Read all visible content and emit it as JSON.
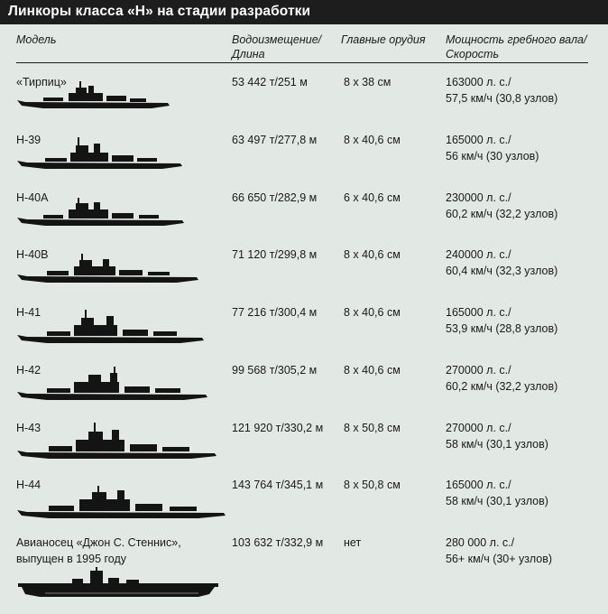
{
  "title": "Линкоры класса «Н» на стадии разработки",
  "headers": {
    "model": "Модель",
    "displacement_line1": "Водоизмещение/",
    "displacement_line2": "Длина",
    "guns": "Главные орудия",
    "power_line1": "Мощность гребного вала/",
    "power_line2": "Скорость"
  },
  "rows": [
    {
      "model": "«Тирпиц»",
      "displacement": "53 442 т/251 м",
      "guns": "8 х 38 см",
      "power": "163000 л. с./",
      "speed": "57,5 км/ч (30,8 узлов)"
    },
    {
      "model": "Н-39",
      "displacement": "63 497 т/277,8 м",
      "guns": "8 х 40,6 см",
      "power": "165000 л. с./",
      "speed": "56 км/ч (30 узлов)"
    },
    {
      "model": "Н-40А",
      "displacement": "66 650 т/282,9 м",
      "guns": "6 х 40,6 см",
      "power": "230000 л. с./",
      "speed": "60,2 км/ч (32,2 узлов)"
    },
    {
      "model": "Н-40В",
      "displacement": "71 120 т/299,8 м",
      "guns": "8 х 40,6 см",
      "power": "240000 л. с./",
      "speed": "60,4 км/ч (32,3 узлов)"
    },
    {
      "model": "Н-41",
      "displacement": "77 216 т/300,4 м",
      "guns": "8 х 40,6 см",
      "power": "165000 л. с./",
      "speed": "53,9 км/ч (28,8 узлов)"
    },
    {
      "model": "Н-42",
      "displacement": "99 568 т/305,2 м",
      "guns": "8 х 40,6 см",
      "power": "270000 л. с./",
      "speed": "60,2 км/ч (32,2 узлов)"
    },
    {
      "model": "Н-43",
      "displacement": "121 920 т/330,2 м",
      "guns": "8 х 50,8 см",
      "power": "270000 л. с./",
      "speed": "58 км/ч (30,1 узлов)"
    },
    {
      "model": "Н-44",
      "displacement": "143 764 т/345,1 м",
      "guns": "8 х 50,8 см",
      "power": "165000 л. с./",
      "speed": "58 км/ч (30,1 узлов)"
    }
  ],
  "carrier": {
    "model_line1": "Авианосец «Джон С. Стеннис»,",
    "model_line2": "выпущен в 1995 году",
    "displacement": "103 632 т/332,9 м",
    "guns": "нет",
    "power": "280 000 л. с./",
    "speed": "56+ км/ч (30+ узлов)"
  }
}
